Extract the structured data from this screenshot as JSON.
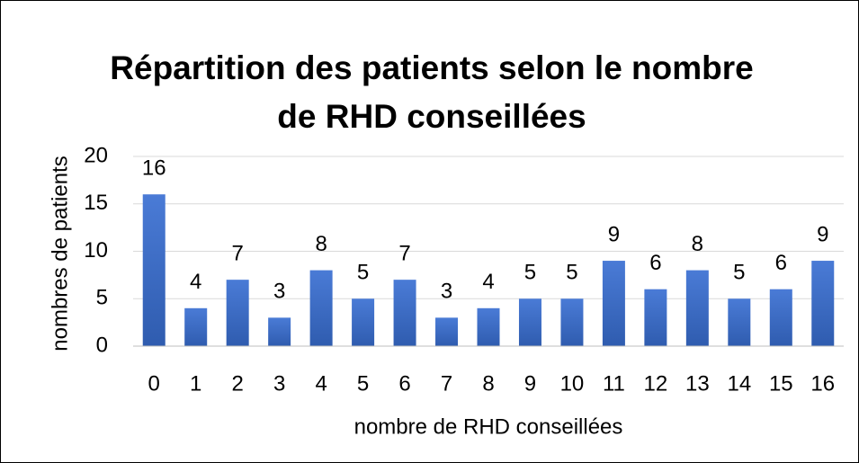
{
  "chart_data": {
    "type": "bar",
    "title": [
      "Répartition des patients selon le nombre",
      "de RHD conseillées"
    ],
    "x_label": "nombre de RHD conseillées",
    "y_label": "nombres de patients",
    "categories": [
      "0",
      "1",
      "2",
      "3",
      "4",
      "5",
      "6",
      "7",
      "8",
      "9",
      "10",
      "11",
      "12",
      "13",
      "14",
      "15",
      "16"
    ],
    "values": [
      16,
      4,
      7,
      3,
      8,
      5,
      7,
      3,
      4,
      5,
      5,
      9,
      6,
      8,
      5,
      6,
      9
    ],
    "color": "#4472c4",
    "ylim": [
      0,
      20
    ],
    "yticks": [
      0,
      5,
      10,
      15,
      20
    ],
    "grid": true
  }
}
